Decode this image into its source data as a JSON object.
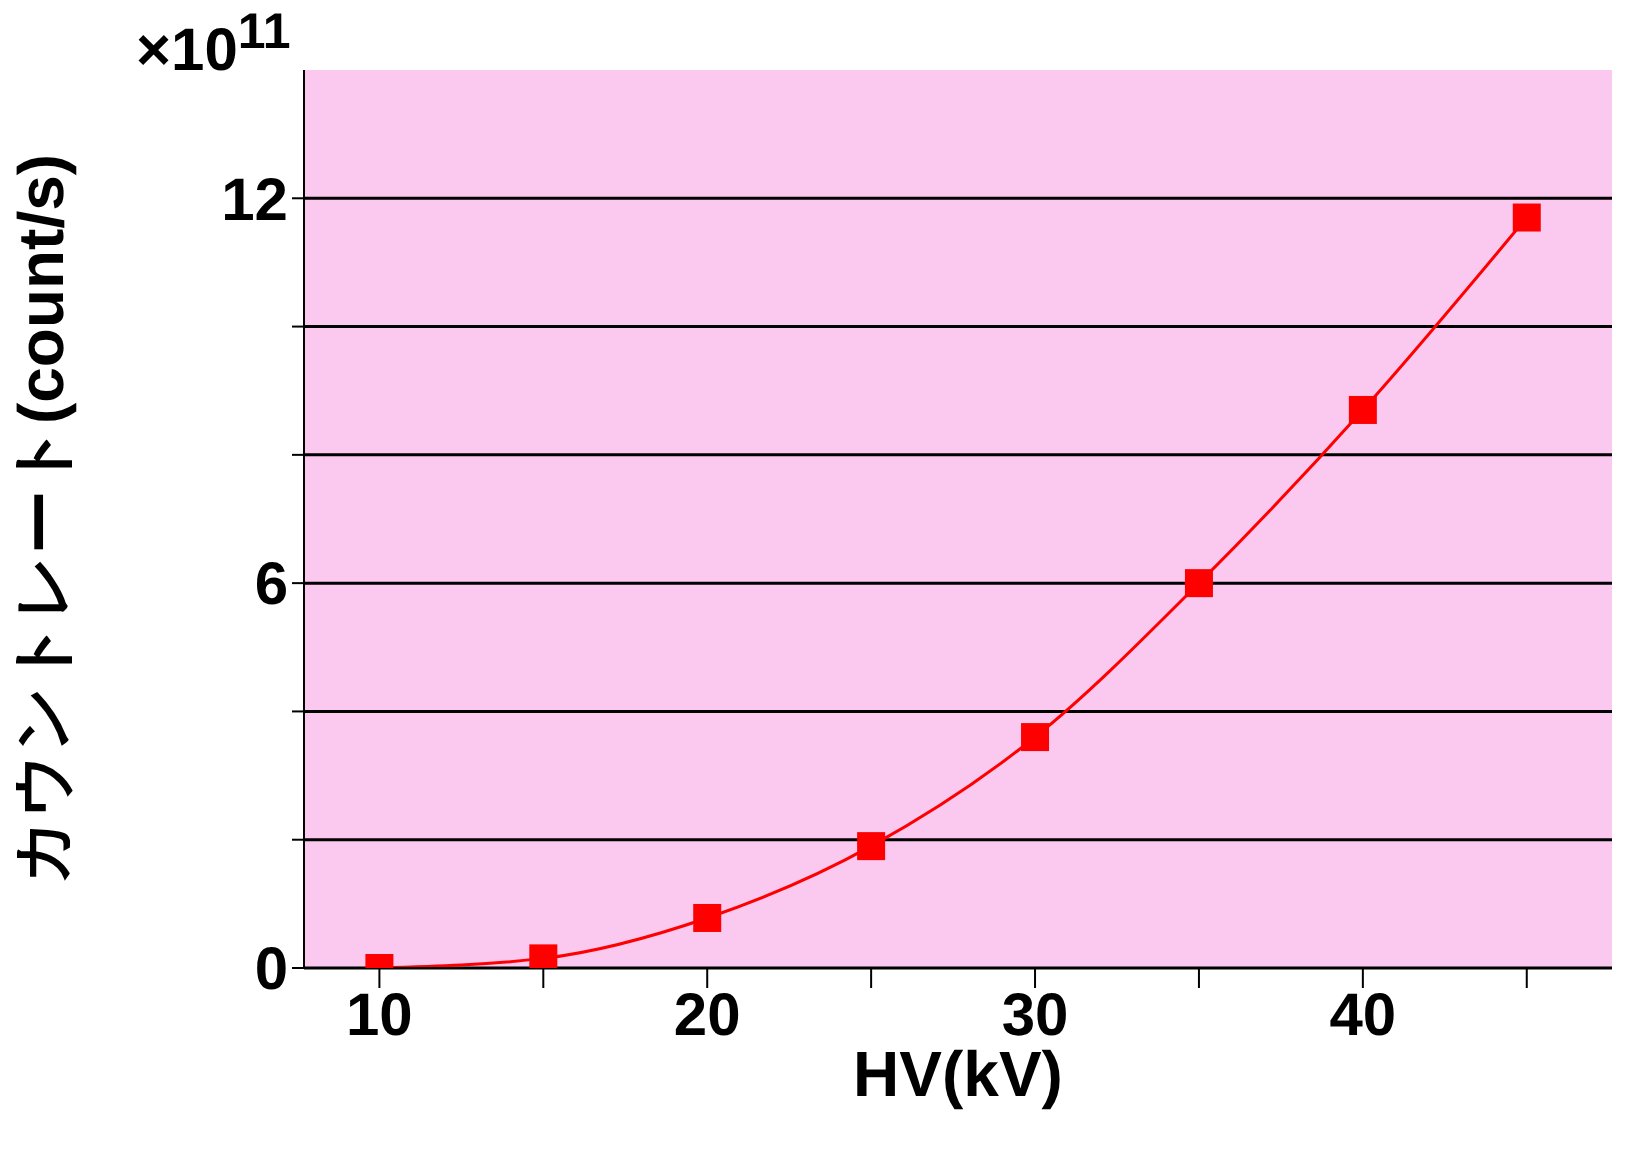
{
  "chart_data": {
    "type": "line",
    "xlabel": "HV(kV)",
    "ylabel": "カウントレート(count/s)",
    "annotations": [
      "×10$^{11}$"
    ],
    "x": [
      10,
      15,
      20,
      25,
      30,
      35,
      40,
      45
    ],
    "series": [
      {
        "color": "#ff0000",
        "values": [
          0,
          0.15,
          0.78,
          1.9,
          3.6,
          6.0,
          8.7,
          11.7
        ]
      }
    ],
    "xlim": [
      7.7,
      47.6
    ],
    "xticks": [
      10,
      {
        "value": 15,
        "label": null
      },
      20,
      {
        "value": 25,
        "label": null
      },
      30,
      {
        "value": 35,
        "label": null
      },
      40,
      {
        "value": 45,
        "label": null
      }
    ],
    "ylim": [
      0,
      14
    ],
    "yticks": [
      0,
      {
        "value": 2,
        "label": null
      },
      {
        "value": 4,
        "label": null
      },
      6,
      {
        "value": 8,
        "label": null
      },
      {
        "value": 10,
        "label": null
      },
      12
    ],
    "grid": "y",
    "marker": "square",
    "line_style": "solid",
    "legend": false
  }
}
